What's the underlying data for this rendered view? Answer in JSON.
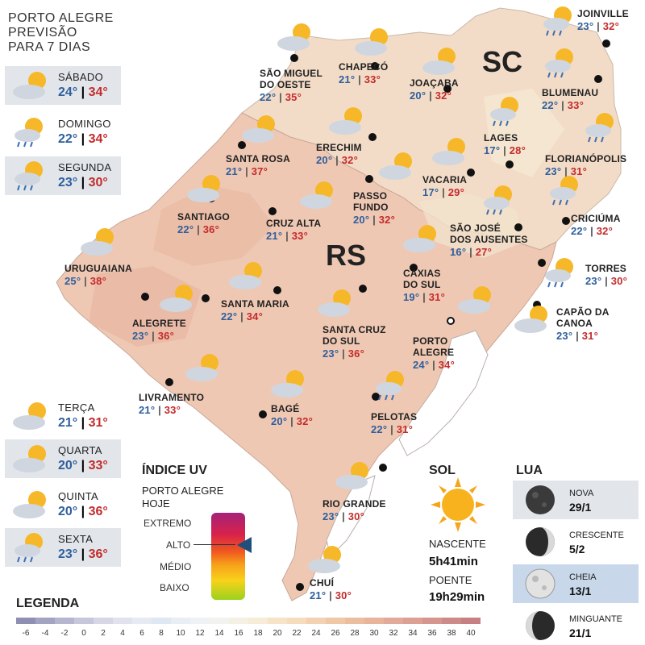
{
  "forecast": {
    "title_lines": [
      "PORTO ALEGRE",
      "PREVISÃO",
      "PARA 7 DIAS"
    ],
    "days": [
      {
        "day": "SÁBADO",
        "min": "24°",
        "max": "34°",
        "icon": "partly-cloudy-icon"
      },
      {
        "day": "DOMINGO",
        "min": "22°",
        "max": "34°",
        "icon": "sun-cloud-rain-icon"
      },
      {
        "day": "SEGUNDA",
        "min": "23°",
        "max": "30°",
        "icon": "sun-cloud-rain-icon"
      },
      {
        "day": "TERÇA",
        "min": "21°",
        "max": "31°",
        "icon": "partly-cloudy-icon"
      },
      {
        "day": "QUARTA",
        "min": "20°",
        "max": "33°",
        "icon": "partly-cloudy-icon"
      },
      {
        "day": "QUINTA",
        "min": "20°",
        "max": "36°",
        "icon": "partly-cloudy-icon"
      },
      {
        "day": "SEXTA",
        "min": "23°",
        "max": "36°",
        "icon": "sun-cloud-rain-icon"
      }
    ]
  },
  "states": {
    "sc": "SC",
    "rs": "RS"
  },
  "cities": [
    {
      "id": "sao-miguel-do-oeste",
      "name1": "SÃO MIGUEL",
      "name2": "DO OESTE",
      "min": "22°",
      "max": "35°"
    },
    {
      "id": "chapeco",
      "name1": "CHAPECÓ",
      "name2": "",
      "min": "21°",
      "max": "33°"
    },
    {
      "id": "joacaba",
      "name1": "JOAÇABA",
      "name2": "",
      "min": "20°",
      "max": "32°"
    },
    {
      "id": "joinville",
      "name1": "JOINVILLE",
      "name2": "",
      "min": "23°",
      "max": "32°"
    },
    {
      "id": "blumenau",
      "name1": "BLUMENAU",
      "name2": "",
      "min": "22°",
      "max": "33°"
    },
    {
      "id": "lages",
      "name1": "LAGES",
      "name2": "",
      "min": "17°",
      "max": "28°"
    },
    {
      "id": "florianopolis",
      "name1": "FLORIANÓPOLIS",
      "name2": "",
      "min": "23°",
      "max": "31°"
    },
    {
      "id": "santa-rosa",
      "name1": "SANTA ROSA",
      "name2": "",
      "min": "21°",
      "max": "37°"
    },
    {
      "id": "erechim",
      "name1": "ERECHIM",
      "name2": "",
      "min": "20°",
      "max": "32°"
    },
    {
      "id": "vacaria",
      "name1": "VACARIA",
      "name2": "",
      "min": "17°",
      "max": "29°"
    },
    {
      "id": "passo-fundo",
      "name1": "PASSO",
      "name2": "FUNDO",
      "min": "20°",
      "max": "32°"
    },
    {
      "id": "criciuma",
      "name1": "CRICIÚMA",
      "name2": "",
      "min": "22°",
      "max": "32°"
    },
    {
      "id": "santiago",
      "name1": "SANTIAGO",
      "name2": "",
      "min": "22°",
      "max": "36°"
    },
    {
      "id": "cruz-alta",
      "name1": "CRUZ ALTA",
      "name2": "",
      "min": "21°",
      "max": "33°"
    },
    {
      "id": "sao-jose-dos-ausentes",
      "name1": "SÃO JOSÉ",
      "name2": "DOS AUSENTES",
      "min": "16°",
      "max": "27°"
    },
    {
      "id": "uruguaiana",
      "name1": "URUGUAIANA",
      "name2": "",
      "min": "25°",
      "max": "38°"
    },
    {
      "id": "torres",
      "name1": "TORRES",
      "name2": "",
      "min": "23°",
      "max": "30°"
    },
    {
      "id": "caxias-do-sul",
      "name1": "CAXIAS",
      "name2": "DO SUL",
      "min": "19°",
      "max": "31°"
    },
    {
      "id": "santa-maria",
      "name1": "SANTA MARIA",
      "name2": "",
      "min": "22°",
      "max": "34°"
    },
    {
      "id": "alegrete",
      "name1": "ALEGRETE",
      "name2": "",
      "min": "23°",
      "max": "36°"
    },
    {
      "id": "capao-da-canoa",
      "name1": "CAPÃO DA",
      "name2": "CANOA",
      "min": "23°",
      "max": "31°"
    },
    {
      "id": "santa-cruz-do-sul",
      "name1": "SANTA CRUZ",
      "name2": "DO SUL",
      "min": "23°",
      "max": "36°"
    },
    {
      "id": "porto-alegre",
      "name1": "PORTO",
      "name2": "ALEGRE",
      "min": "24°",
      "max": "34°"
    },
    {
      "id": "livramento",
      "name1": "LIVRAMENTO",
      "name2": "",
      "min": "21°",
      "max": "33°"
    },
    {
      "id": "bage",
      "name1": "BAGÉ",
      "name2": "",
      "min": "20°",
      "max": "32°"
    },
    {
      "id": "pelotas",
      "name1": "PELOTAS",
      "name2": "",
      "min": "22°",
      "max": "31°"
    },
    {
      "id": "rio-grande",
      "name1": "RIO GRANDE",
      "name2": "",
      "min": "23°",
      "max": "30°"
    },
    {
      "id": "chui",
      "name1": "CHUÍ",
      "name2": "",
      "min": "21°",
      "max": "30°"
    }
  ],
  "uv": {
    "title": "ÍNDICE UV",
    "subtitle_lines": [
      "PORTO ALEGRE",
      "HOJE"
    ],
    "levels": [
      "EXTREMO",
      "ALTO",
      "MÉDIO",
      "BAIXO"
    ],
    "current": "ALTO"
  },
  "sol": {
    "title": "SOL",
    "sunrise_label": "NASCENTE",
    "sunrise": "5h41min",
    "sunset_label": "POENTE",
    "sunset": "19h29min"
  },
  "lua": {
    "title": "LUA",
    "phases": [
      {
        "name": "NOVA",
        "date": "29/1",
        "icon": "new-moon-icon"
      },
      {
        "name": "CRESCENTE",
        "date": "5/2",
        "icon": "waxing-moon-icon"
      },
      {
        "name": "CHEIA",
        "date": "13/1",
        "icon": "full-moon-icon"
      },
      {
        "name": "MINGUANTE",
        "date": "21/1",
        "icon": "waning-moon-icon"
      }
    ]
  },
  "legend": {
    "title": "LEGENDA",
    "ticks": [
      "-6",
      "-4",
      "-2",
      "0",
      "2",
      "4",
      "6",
      "8",
      "10",
      "12",
      "14",
      "16",
      "18",
      "20",
      "22",
      "24",
      "26",
      "28",
      "30",
      "32",
      "34",
      "36",
      "38",
      "40"
    ],
    "colors": [
      "#8f8fb3",
      "#a3a3c2",
      "#b6b6d0",
      "#c7c7dc",
      "#d6d6e6",
      "#e2e2ee",
      "#e6eaf2",
      "#dfe8f2",
      "#e8eef4",
      "#eef2f4",
      "#f2f2ee",
      "#f4f0e4",
      "#f6ecd8",
      "#f6e4c8",
      "#f4dcbc",
      "#f2d2b2",
      "#efc8a8",
      "#ecbea0",
      "#e8b49c",
      "#e2aa98",
      "#dca094",
      "#d4968e",
      "#cc8a88",
      "#c68084"
    ]
  }
}
